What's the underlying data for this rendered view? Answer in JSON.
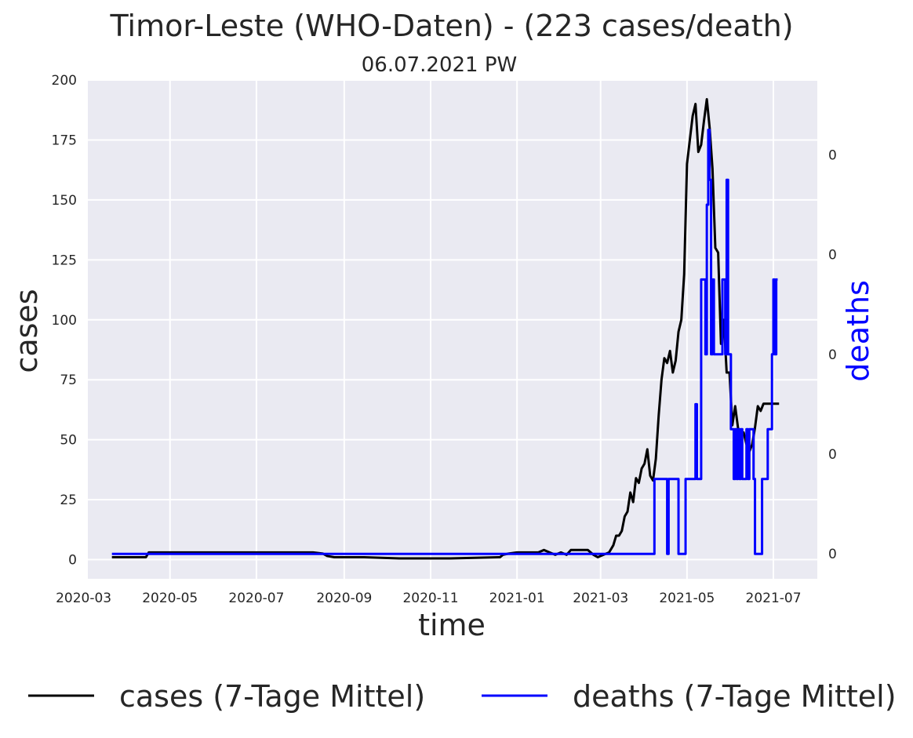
{
  "chart_data": {
    "type": "line",
    "title": "Timor-Leste (WHO-Daten) - (223 cases/death)",
    "subtitle": "06.07.2021 PW",
    "xlabel": "time",
    "ylabel": "cases",
    "y2label": "deaths",
    "xlim": [
      "2020-03-04",
      "2021-08-01"
    ],
    "ylim": [
      -8,
      200
    ],
    "y2lim": [
      0,
      1
    ],
    "x_ticks": [
      "2020-03",
      "2020-05",
      "2020-07",
      "2020-09",
      "2020-11",
      "2021-01",
      "2021-03",
      "2021-05",
      "2021-07"
    ],
    "y_ticks": [
      0,
      25,
      50,
      75,
      100,
      125,
      150,
      175,
      200
    ],
    "y2_ticks": [
      {
        "value": 0.05,
        "label": "0"
      },
      {
        "value": 0.25,
        "label": "0"
      },
      {
        "value": 0.45,
        "label": "0"
      },
      {
        "value": 0.65,
        "label": "0"
      },
      {
        "value": 0.85,
        "label": "0"
      }
    ],
    "grid": true,
    "legend_position": "bottom",
    "colors": {
      "cases": "#000000",
      "deaths": "#0000ff",
      "background": "#eaeaf2",
      "y2label": "#0000ff"
    },
    "series": [
      {
        "name": "cases (7-Tage Mittel)",
        "axis": "left",
        "x": [
          "2020-03-21",
          "2020-04-14",
          "2020-04-16",
          "2020-04-18",
          "2020-04-20",
          "2020-05-15",
          "2020-06-15",
          "2020-07-15",
          "2020-08-10",
          "2020-08-17",
          "2020-08-20",
          "2020-08-25",
          "2020-09-15",
          "2020-10-10",
          "2020-11-15",
          "2020-12-20",
          "2020-12-22",
          "2020-12-26",
          "2021-01-01",
          "2021-01-10",
          "2021-01-16",
          "2021-01-20",
          "2021-01-24",
          "2021-01-28",
          "2021-02-01",
          "2021-02-05",
          "2021-02-08",
          "2021-02-12",
          "2021-02-16",
          "2021-02-20",
          "2021-02-24",
          "2021-02-27",
          "2021-03-03",
          "2021-03-07",
          "2021-03-10",
          "2021-03-12",
          "2021-03-14",
          "2021-03-16",
          "2021-03-18",
          "2021-03-20",
          "2021-03-22",
          "2021-03-24",
          "2021-03-26",
          "2021-03-28",
          "2021-03-30",
          "2021-04-01",
          "2021-04-03",
          "2021-04-05",
          "2021-04-07",
          "2021-04-09",
          "2021-04-11",
          "2021-04-13",
          "2021-04-15",
          "2021-04-17",
          "2021-04-19",
          "2021-04-21",
          "2021-04-23",
          "2021-04-25",
          "2021-04-27",
          "2021-04-29",
          "2021-05-01",
          "2021-05-03",
          "2021-05-05",
          "2021-05-07",
          "2021-05-09",
          "2021-05-11",
          "2021-05-13",
          "2021-05-15",
          "2021-05-17",
          "2021-05-19",
          "2021-05-21",
          "2021-05-23",
          "2021-05-25",
          "2021-05-27",
          "2021-05-29",
          "2021-05-31",
          "2021-06-02",
          "2021-06-04",
          "2021-06-06",
          "2021-06-08",
          "2021-06-10",
          "2021-06-12",
          "2021-06-14",
          "2021-06-16",
          "2021-06-18",
          "2021-06-20",
          "2021-06-22",
          "2021-06-24",
          "2021-06-26",
          "2021-06-28",
          "2021-06-30",
          "2021-07-02",
          "2021-07-04",
          "2021-07-05"
        ],
        "y": [
          1,
          1,
          3,
          3,
          3,
          3,
          3,
          3,
          3,
          2.5,
          1.5,
          1,
          1,
          0.5,
          0.5,
          1,
          2,
          2.5,
          3,
          3,
          3,
          4,
          3,
          2,
          3,
          2,
          4,
          4,
          4,
          4,
          2,
          1,
          2,
          3,
          6,
          10,
          10,
          12,
          18,
          20,
          28,
          24,
          34,
          32,
          38,
          40,
          46,
          35,
          33,
          42,
          60,
          75,
          84,
          82,
          87,
          78,
          83,
          95,
          100,
          119,
          165,
          175,
          185,
          190,
          170,
          173,
          183,
          192,
          180,
          163,
          130,
          128,
          90,
          100,
          78,
          78,
          56,
          64,
          55,
          52,
          53,
          48,
          45,
          48,
          55,
          64,
          62,
          65,
          65,
          65,
          65,
          65,
          65,
          65
        ],
        "note_y": "read off left axis"
      },
      {
        "name": "deaths (7-Tage Mittel)",
        "axis": "right",
        "x": [
          "2020-03-21",
          "2021-04-07",
          "2021-04-08",
          "2021-04-16",
          "2021-04-17",
          "2021-04-18",
          "2021-04-24",
          "2021-04-25",
          "2021-04-29",
          "2021-04-30",
          "2021-05-06",
          "2021-05-07",
          "2021-05-08",
          "2021-05-10",
          "2021-05-11",
          "2021-05-13",
          "2021-05-14",
          "2021-05-15",
          "2021-05-16",
          "2021-05-17",
          "2021-05-18",
          "2021-05-19",
          "2021-05-20",
          "2021-05-25",
          "2021-05-26",
          "2021-05-27",
          "2021-05-28",
          "2021-05-29",
          "2021-05-30",
          "2021-06-01",
          "2021-06-02",
          "2021-06-03",
          "2021-06-04",
          "2021-06-05",
          "2021-06-06",
          "2021-06-07",
          "2021-06-08",
          "2021-06-09",
          "2021-06-12",
          "2021-06-13",
          "2021-06-14",
          "2021-06-17",
          "2021-06-18",
          "2021-06-22",
          "2021-06-23",
          "2021-06-26",
          "2021-06-27",
          "2021-06-29",
          "2021-06-30",
          "2021-07-01",
          "2021-07-02",
          "2021-07-03",
          "2021-07-04"
        ],
        "y": [
          0.05,
          0.05,
          0.2,
          0.2,
          0.05,
          0.2,
          0.2,
          0.05,
          0.05,
          0.2,
          0.2,
          0.35,
          0.2,
          0.2,
          0.6,
          0.6,
          0.45,
          0.75,
          0.9,
          0.8,
          0.45,
          0.6,
          0.45,
          0.45,
          0.6,
          0.6,
          0.45,
          0.8,
          0.45,
          0.3,
          0.3,
          0.2,
          0.3,
          0.2,
          0.3,
          0.2,
          0.3,
          0.2,
          0.3,
          0.2,
          0.3,
          0.2,
          0.05,
          0.05,
          0.2,
          0.2,
          0.3,
          0.3,
          0.45,
          0.6,
          0.45,
          0.6,
          0.6
        ]
      }
    ]
  }
}
